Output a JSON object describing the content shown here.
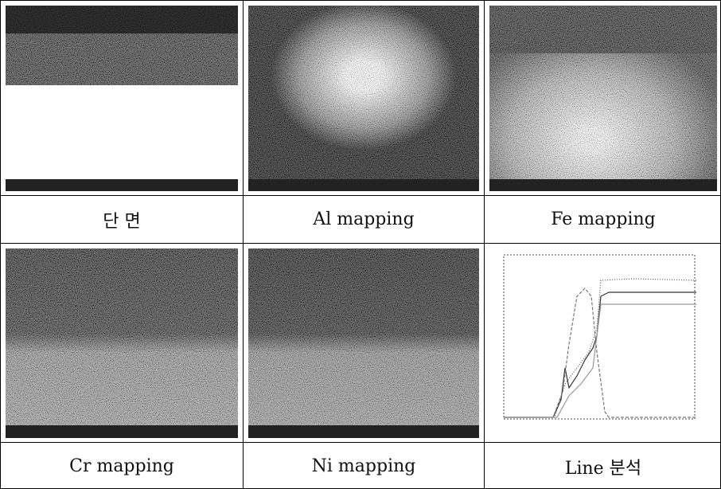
{
  "table": {
    "captions": [
      [
        "단 면",
        "Al mapping",
        "Fe mapping"
      ],
      [
        "Cr mapping",
        "Ni mapping",
        "Line 분석"
      ]
    ]
  }
}
